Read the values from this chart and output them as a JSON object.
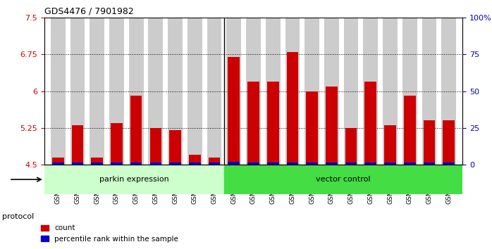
{
  "title": "GDS4476 / 7901982",
  "samples": [
    "GSM729739",
    "GSM729740",
    "GSM729741",
    "GSM729742",
    "GSM729743",
    "GSM729744",
    "GSM729745",
    "GSM729746",
    "GSM729747",
    "GSM729727",
    "GSM729728",
    "GSM729729",
    "GSM729730",
    "GSM729731",
    "GSM729732",
    "GSM729733",
    "GSM729734",
    "GSM729735",
    "GSM729736",
    "GSM729737",
    "GSM729738"
  ],
  "red_values": [
    4.65,
    5.3,
    4.65,
    5.35,
    5.9,
    5.25,
    5.2,
    4.7,
    4.65,
    6.7,
    6.2,
    6.2,
    6.8,
    6.0,
    6.1,
    5.25,
    6.2,
    5.3,
    5.9,
    5.4,
    5.4
  ],
  "blue_values": [
    0.04,
    0.04,
    0.04,
    0.04,
    0.04,
    0.04,
    0.04,
    0.04,
    0.04,
    0.06,
    0.05,
    0.05,
    0.05,
    0.05,
    0.05,
    0.04,
    0.05,
    0.04,
    0.05,
    0.04,
    0.04
  ],
  "parkin_count": 9,
  "vector_count": 12,
  "parkin_label": "parkin expression",
  "vector_label": "vector control",
  "protocol_label": "protocol",
  "ylim_left": [
    4.5,
    7.5
  ],
  "yticks_left": [
    4.5,
    5.25,
    6.0,
    6.75,
    7.5
  ],
  "ytick_labels_left": [
    "4.5",
    "5.25",
    "6",
    "6.75",
    "7.5"
  ],
  "ylim_right": [
    0,
    100
  ],
  "yticks_right": [
    0,
    25,
    50,
    75,
    100
  ],
  "ytick_labels_right": [
    "0",
    "25",
    "50",
    "75",
    "100%"
  ],
  "red_color": "#cc0000",
  "blue_color": "#0000cc",
  "parkin_bg": "#ccffcc",
  "vector_bg": "#44dd44",
  "bar_bg": "#cccccc",
  "bar_width": 0.6,
  "legend_count_label": "count",
  "legend_pct_label": "percentile rank within the sample"
}
